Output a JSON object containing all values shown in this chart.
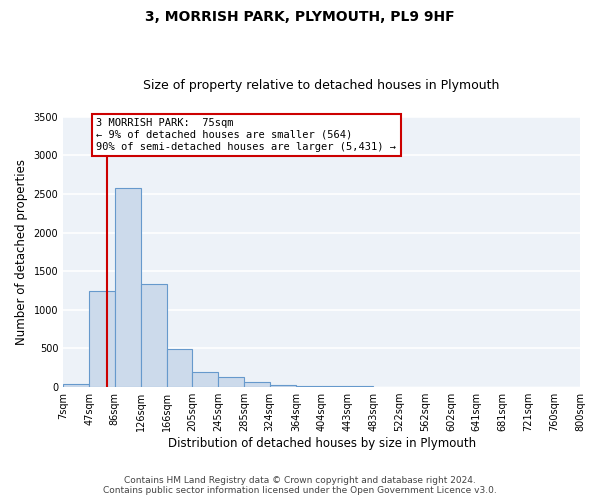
{
  "title": "3, MORRISH PARK, PLYMOUTH, PL9 9HF",
  "subtitle": "Size of property relative to detached houses in Plymouth",
  "xlabel": "Distribution of detached houses by size in Plymouth",
  "ylabel": "Number of detached properties",
  "bar_color": "#ccdaeb",
  "bar_edge_color": "#6699cc",
  "bin_edges": [
    7,
    47,
    86,
    126,
    166,
    205,
    245,
    285,
    324,
    364,
    404,
    443,
    483,
    522,
    562,
    602,
    641,
    681,
    721,
    760,
    800
  ],
  "bar_heights": [
    40,
    1250,
    2580,
    1340,
    490,
    195,
    125,
    60,
    30,
    15,
    10,
    8,
    6,
    5,
    4,
    3,
    3,
    2,
    2,
    2
  ],
  "tick_labels": [
    "7sqm",
    "47sqm",
    "86sqm",
    "126sqm",
    "166sqm",
    "205sqm",
    "245sqm",
    "285sqm",
    "324sqm",
    "364sqm",
    "404sqm",
    "443sqm",
    "483sqm",
    "522sqm",
    "562sqm",
    "602sqm",
    "641sqm",
    "681sqm",
    "721sqm",
    "760sqm",
    "800sqm"
  ],
  "property_size": 75,
  "property_line_color": "#cc0000",
  "annotation_text": "3 MORRISH PARK:  75sqm\n← 9% of detached houses are smaller (564)\n90% of semi-detached houses are larger (5,431) →",
  "annotation_box_color": "#cc0000",
  "ylim": [
    0,
    3500
  ],
  "yticks": [
    0,
    500,
    1000,
    1500,
    2000,
    2500,
    3000,
    3500
  ],
  "footer_line1": "Contains HM Land Registry data © Crown copyright and database right 2024.",
  "footer_line2": "Contains public sector information licensed under the Open Government Licence v3.0.",
  "bg_color": "#edf2f8",
  "grid_color": "#ffffff",
  "title_fontsize": 10,
  "subtitle_fontsize": 9,
  "axis_label_fontsize": 8.5,
  "tick_fontsize": 7,
  "footer_fontsize": 6.5
}
